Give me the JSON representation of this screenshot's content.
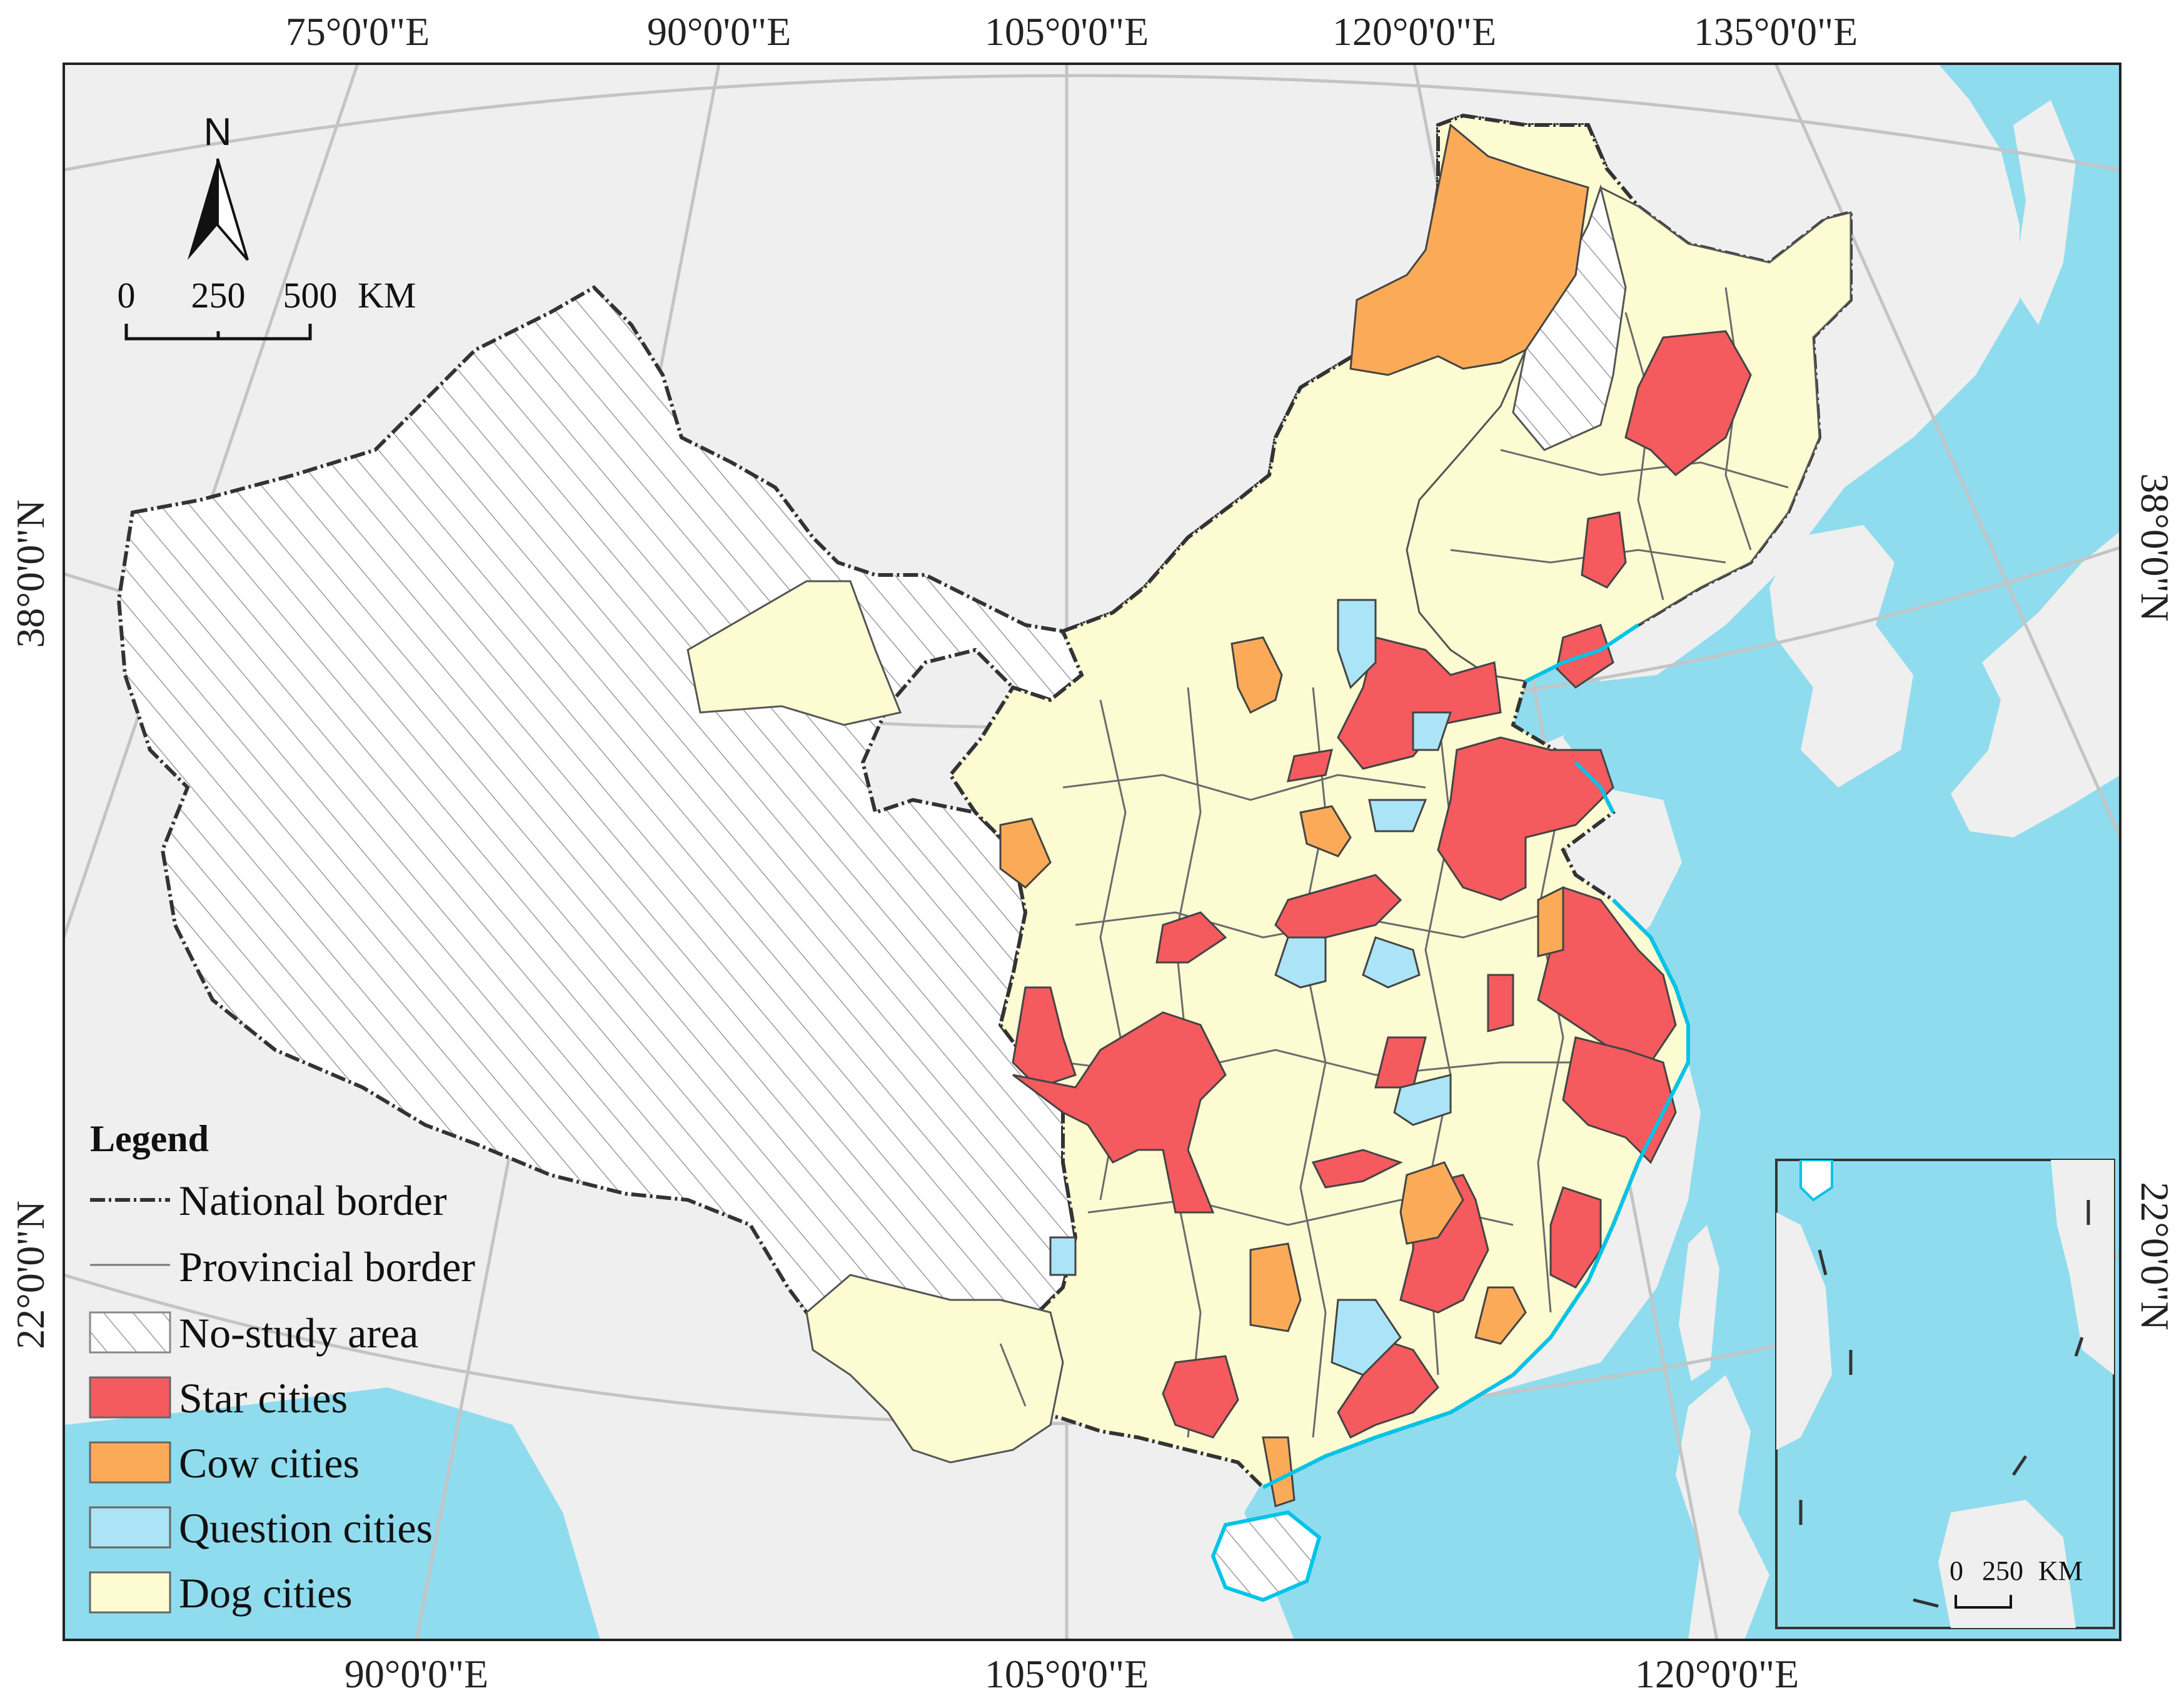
{
  "colors": {
    "ocean": "#8fdcee",
    "land_other": "#efefef",
    "no_study": "#ffffff",
    "star": "#f45a5e",
    "cow": "#fbab58",
    "question": "#abe4f6",
    "dog": "#fdfbd2",
    "border": "#333333",
    "graticule": "#c4c4c4"
  },
  "graticule": {
    "top_labels": [
      "75°0'0\"E",
      "90°0'0\"E",
      "105°0'0\"E",
      "120°0'0\"E",
      "135°0'0\"E"
    ],
    "bottom_labels": [
      "90°0'0\"E",
      "105°0'0\"E",
      "120°0'0\"E"
    ],
    "left_labels": [
      "38°0'0\"N",
      "22°0'0\"N"
    ],
    "right_labels": [
      "38°0'0\"N",
      "22°0'0\"N"
    ]
  },
  "north_arrow": {
    "label": "N",
    "icon": "north-arrow-icon"
  },
  "scale_bar": {
    "tick_labels": [
      "0",
      "250",
      "500"
    ],
    "unit": "KM"
  },
  "inset": {
    "scale_tick": "0",
    "scale_value": "250",
    "scale_unit": "KM"
  },
  "legend": {
    "title": "Legend",
    "items": [
      {
        "label": "National border",
        "symbol": "dashdot-line"
      },
      {
        "label": "Provincial border",
        "symbol": "thin-line"
      },
      {
        "label": "No-study area",
        "symbol": "hatch"
      },
      {
        "label": "Star cities",
        "symbol": "fill",
        "color": "#f45a5e"
      },
      {
        "label": "Cow cities",
        "symbol": "fill",
        "color": "#fbab58"
      },
      {
        "label": "Question cities",
        "symbol": "fill",
        "color": "#abe4f6"
      },
      {
        "label": "Dog cities",
        "symbol": "fill",
        "color": "#fdfbd2"
      }
    ]
  }
}
